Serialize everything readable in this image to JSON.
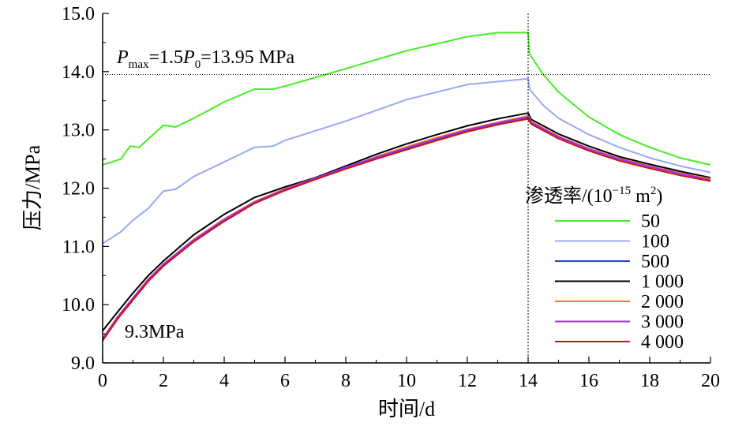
{
  "chart_data": {
    "type": "line",
    "xlabel": "时间/d",
    "ylabel": "压力/MPa",
    "xlim": [
      0,
      20
    ],
    "ylim": [
      9.0,
      15.0
    ],
    "x_ticks": [
      "0",
      "2",
      "4",
      "6",
      "8",
      "10",
      "12",
      "14",
      "16",
      "18",
      "20"
    ],
    "y_ticks": [
      "9.0",
      "10.0",
      "11.0",
      "12.0",
      "13.0",
      "14.0",
      "15.0"
    ],
    "grid": false,
    "legend_position": "right",
    "legend_title": "渗透率/(10⁻¹⁵ m²)",
    "reference_hline": {
      "y": 13.95,
      "style": "dotted"
    },
    "reference_vline": {
      "x": 14,
      "style": "dotted"
    },
    "annotations": {
      "pmax": "Pmax=1.5P0=13.95 MPa",
      "start": "9.3MPa"
    },
    "series": [
      {
        "name": "50",
        "color": "#44ee22",
        "points": [
          [
            0,
            12.4
          ],
          [
            0.3,
            12.45
          ],
          [
            0.6,
            12.5
          ],
          [
            0.9,
            12.72
          ],
          [
            1.2,
            12.7
          ],
          [
            2.0,
            13.08
          ],
          [
            2.4,
            13.05
          ],
          [
            3.0,
            13.2
          ],
          [
            4.0,
            13.48
          ],
          [
            5.0,
            13.7
          ],
          [
            5.6,
            13.7
          ],
          [
            6.0,
            13.75
          ],
          [
            8.0,
            14.05
          ],
          [
            10.0,
            14.36
          ],
          [
            12.0,
            14.6
          ],
          [
            13.0,
            14.67
          ],
          [
            14.0,
            14.67
          ],
          [
            14.05,
            14.3
          ],
          [
            14.5,
            13.95
          ],
          [
            15.0,
            13.65
          ],
          [
            16.0,
            13.22
          ],
          [
            17.0,
            12.92
          ],
          [
            18.0,
            12.7
          ],
          [
            19.0,
            12.52
          ],
          [
            20.0,
            12.4
          ]
        ]
      },
      {
        "name": "100",
        "color": "#99aaee",
        "points": [
          [
            0,
            11.05
          ],
          [
            0.3,
            11.15
          ],
          [
            0.6,
            11.25
          ],
          [
            1.0,
            11.45
          ],
          [
            1.5,
            11.65
          ],
          [
            2.0,
            11.95
          ],
          [
            2.4,
            11.98
          ],
          [
            3.0,
            12.2
          ],
          [
            4.0,
            12.45
          ],
          [
            5.0,
            12.7
          ],
          [
            5.6,
            12.72
          ],
          [
            6.0,
            12.82
          ],
          [
            8.0,
            13.15
          ],
          [
            10.0,
            13.52
          ],
          [
            12.0,
            13.78
          ],
          [
            14.0,
            13.88
          ],
          [
            14.05,
            13.7
          ],
          [
            14.5,
            13.42
          ],
          [
            15.0,
            13.2
          ],
          [
            16.0,
            12.92
          ],
          [
            17.0,
            12.7
          ],
          [
            18.0,
            12.52
          ],
          [
            19.0,
            12.38
          ],
          [
            20.0,
            12.27
          ]
        ]
      },
      {
        "name": "500",
        "color": "#2244cc",
        "points": [
          [
            0,
            9.4
          ],
          [
            0.5,
            9.78
          ],
          [
            1.0,
            10.1
          ],
          [
            1.5,
            10.42
          ],
          [
            2.0,
            10.68
          ],
          [
            3.0,
            11.1
          ],
          [
            4.0,
            11.45
          ],
          [
            5.0,
            11.76
          ],
          [
            6.0,
            11.98
          ],
          [
            7.0,
            12.16
          ],
          [
            8.0,
            12.35
          ],
          [
            9.0,
            12.52
          ],
          [
            10.0,
            12.68
          ],
          [
            11.0,
            12.84
          ],
          [
            12.0,
            12.99
          ],
          [
            13.0,
            13.11
          ],
          [
            14.0,
            13.21
          ],
          [
            14.1,
            13.12
          ],
          [
            15.0,
            12.88
          ],
          [
            16.0,
            12.67
          ],
          [
            17.0,
            12.5
          ],
          [
            18.0,
            12.37
          ],
          [
            19.0,
            12.25
          ],
          [
            20.0,
            12.15
          ]
        ]
      },
      {
        "name": "1 000",
        "color": "#000000",
        "points": [
          [
            0,
            9.55
          ],
          [
            0.5,
            9.88
          ],
          [
            1.0,
            10.2
          ],
          [
            1.5,
            10.5
          ],
          [
            2.0,
            10.75
          ],
          [
            3.0,
            11.2
          ],
          [
            4.0,
            11.55
          ],
          [
            5.0,
            11.84
          ],
          [
            6.0,
            12.02
          ],
          [
            7.0,
            12.18
          ],
          [
            8.0,
            12.38
          ],
          [
            9.0,
            12.58
          ],
          [
            10.0,
            12.76
          ],
          [
            11.0,
            12.92
          ],
          [
            12.0,
            13.07
          ],
          [
            13.0,
            13.19
          ],
          [
            14.0,
            13.29
          ],
          [
            14.1,
            13.18
          ],
          [
            15.0,
            12.93
          ],
          [
            16.0,
            12.72
          ],
          [
            17.0,
            12.54
          ],
          [
            18.0,
            12.41
          ],
          [
            19.0,
            12.29
          ],
          [
            20.0,
            12.18
          ]
        ]
      },
      {
        "name": "2 000",
        "color": "#ff7722",
        "points": [
          [
            0,
            9.42
          ],
          [
            0.5,
            9.8
          ],
          [
            1.0,
            10.12
          ],
          [
            1.5,
            10.44
          ],
          [
            2.0,
            10.7
          ],
          [
            3.0,
            11.12
          ],
          [
            4.0,
            11.47
          ],
          [
            5.0,
            11.77
          ],
          [
            6.0,
            11.99
          ],
          [
            7.0,
            12.17
          ],
          [
            8.0,
            12.35
          ],
          [
            9.0,
            12.54
          ],
          [
            10.0,
            12.71
          ],
          [
            11.0,
            12.87
          ],
          [
            12.0,
            13.01
          ],
          [
            13.0,
            13.13
          ],
          [
            14.0,
            13.24
          ],
          [
            14.1,
            13.14
          ],
          [
            15.0,
            12.89
          ],
          [
            16.0,
            12.68
          ],
          [
            17.0,
            12.51
          ],
          [
            18.0,
            12.38
          ],
          [
            19.0,
            12.26
          ],
          [
            20.0,
            12.16
          ]
        ]
      },
      {
        "name": "3 000",
        "color": "#9933ee",
        "points": [
          [
            0,
            9.41
          ],
          [
            0.5,
            9.79
          ],
          [
            1.0,
            10.11
          ],
          [
            1.5,
            10.43
          ],
          [
            2.0,
            10.69
          ],
          [
            3.0,
            11.11
          ],
          [
            4.0,
            11.46
          ],
          [
            5.0,
            11.76
          ],
          [
            6.0,
            11.98
          ],
          [
            7.0,
            12.17
          ],
          [
            8.0,
            12.36
          ],
          [
            9.0,
            12.53
          ],
          [
            10.0,
            12.69
          ],
          [
            11.0,
            12.85
          ],
          [
            12.0,
            13.0
          ],
          [
            13.0,
            13.12
          ],
          [
            14.0,
            13.22
          ],
          [
            14.1,
            13.13
          ],
          [
            15.0,
            12.88
          ],
          [
            16.0,
            12.67
          ],
          [
            17.0,
            12.5
          ],
          [
            18.0,
            12.37
          ],
          [
            19.0,
            12.25
          ],
          [
            20.0,
            12.14
          ]
        ]
      },
      {
        "name": "4 000",
        "color": "#cc1111",
        "points": [
          [
            0,
            9.38
          ],
          [
            0.5,
            9.76
          ],
          [
            1.0,
            10.08
          ],
          [
            1.5,
            10.4
          ],
          [
            2.0,
            10.66
          ],
          [
            3.0,
            11.08
          ],
          [
            4.0,
            11.43
          ],
          [
            5.0,
            11.74
          ],
          [
            6.0,
            11.96
          ],
          [
            7.0,
            12.15
          ],
          [
            8.0,
            12.33
          ],
          [
            9.0,
            12.5
          ],
          [
            10.0,
            12.66
          ],
          [
            11.0,
            12.82
          ],
          [
            12.0,
            12.97
          ],
          [
            13.0,
            13.09
          ],
          [
            14.0,
            13.19
          ],
          [
            14.1,
            13.1
          ],
          [
            15.0,
            12.85
          ],
          [
            16.0,
            12.64
          ],
          [
            17.0,
            12.47
          ],
          [
            18.0,
            12.34
          ],
          [
            19.0,
            12.22
          ],
          [
            20.0,
            12.12
          ]
        ]
      }
    ]
  }
}
